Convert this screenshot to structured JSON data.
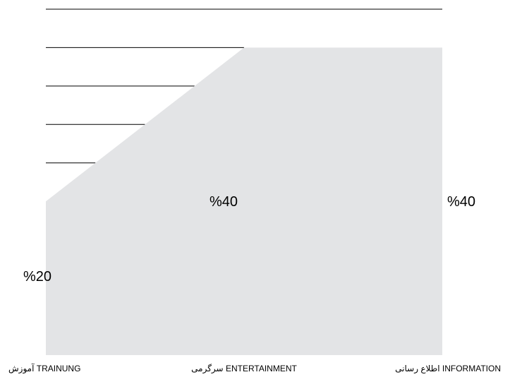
{
  "chart_data": {
    "type": "area",
    "categories": [
      "آموزش TRAINUNG",
      "سرگرمی ENTERTAINMENT",
      "اطلاع رسانی INFORMATION"
    ],
    "series": [
      {
        "values": [
          20,
          40,
          40
        ]
      }
    ],
    "data_labels": [
      "%20",
      "%40",
      "%40"
    ],
    "ylim": [
      0,
      45
    ],
    "grid": true,
    "colors": {
      "area": "#e3e4e6",
      "gridline": "#000000"
    }
  }
}
